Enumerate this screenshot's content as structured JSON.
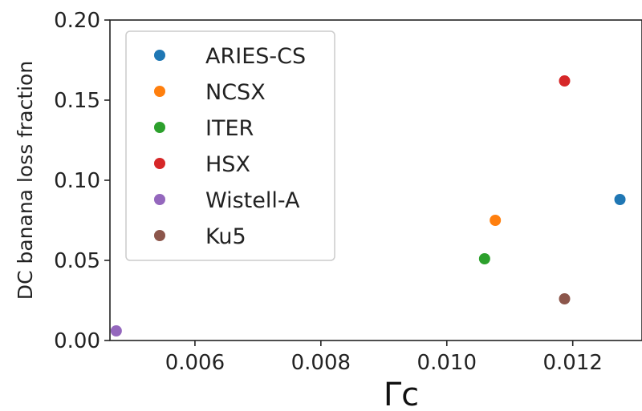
{
  "chart_data": {
    "type": "scatter",
    "xlabel": "Γc",
    "ylabel": "DC banana loss fraction",
    "xlim": [
      0.00465,
      0.0131
    ],
    "ylim": [
      0.0,
      0.2
    ],
    "x_ticks": [
      0.006,
      0.008,
      0.01,
      0.012
    ],
    "x_tick_labels": [
      "0.006",
      "0.008",
      "0.010",
      "0.012"
    ],
    "y_ticks": [
      0.0,
      0.05,
      0.1,
      0.15,
      0.2
    ],
    "y_tick_labels": [
      "0.00",
      "0.05",
      "0.10",
      "0.15",
      "0.20"
    ],
    "grid": false,
    "legend_position": "upper-left",
    "series": [
      {
        "name": "ARIES-CS",
        "color": "#1f77b4",
        "x": [
          0.01275
        ],
        "y": [
          0.088
        ]
      },
      {
        "name": "NCSX",
        "color": "#ff7f0e",
        "x": [
          0.01077
        ],
        "y": [
          0.075
        ]
      },
      {
        "name": "ITER",
        "color": "#2ca02c",
        "x": [
          0.0106
        ],
        "y": [
          0.051
        ]
      },
      {
        "name": "HSX",
        "color": "#d62728",
        "x": [
          0.01187
        ],
        "y": [
          0.162
        ]
      },
      {
        "name": "Wistell-A",
        "color": "#9467bd",
        "x": [
          0.00475
        ],
        "y": [
          0.006
        ]
      },
      {
        "name": "Ku5",
        "color": "#8c564b",
        "x": [
          0.01187
        ],
        "y": [
          0.026
        ]
      }
    ]
  }
}
